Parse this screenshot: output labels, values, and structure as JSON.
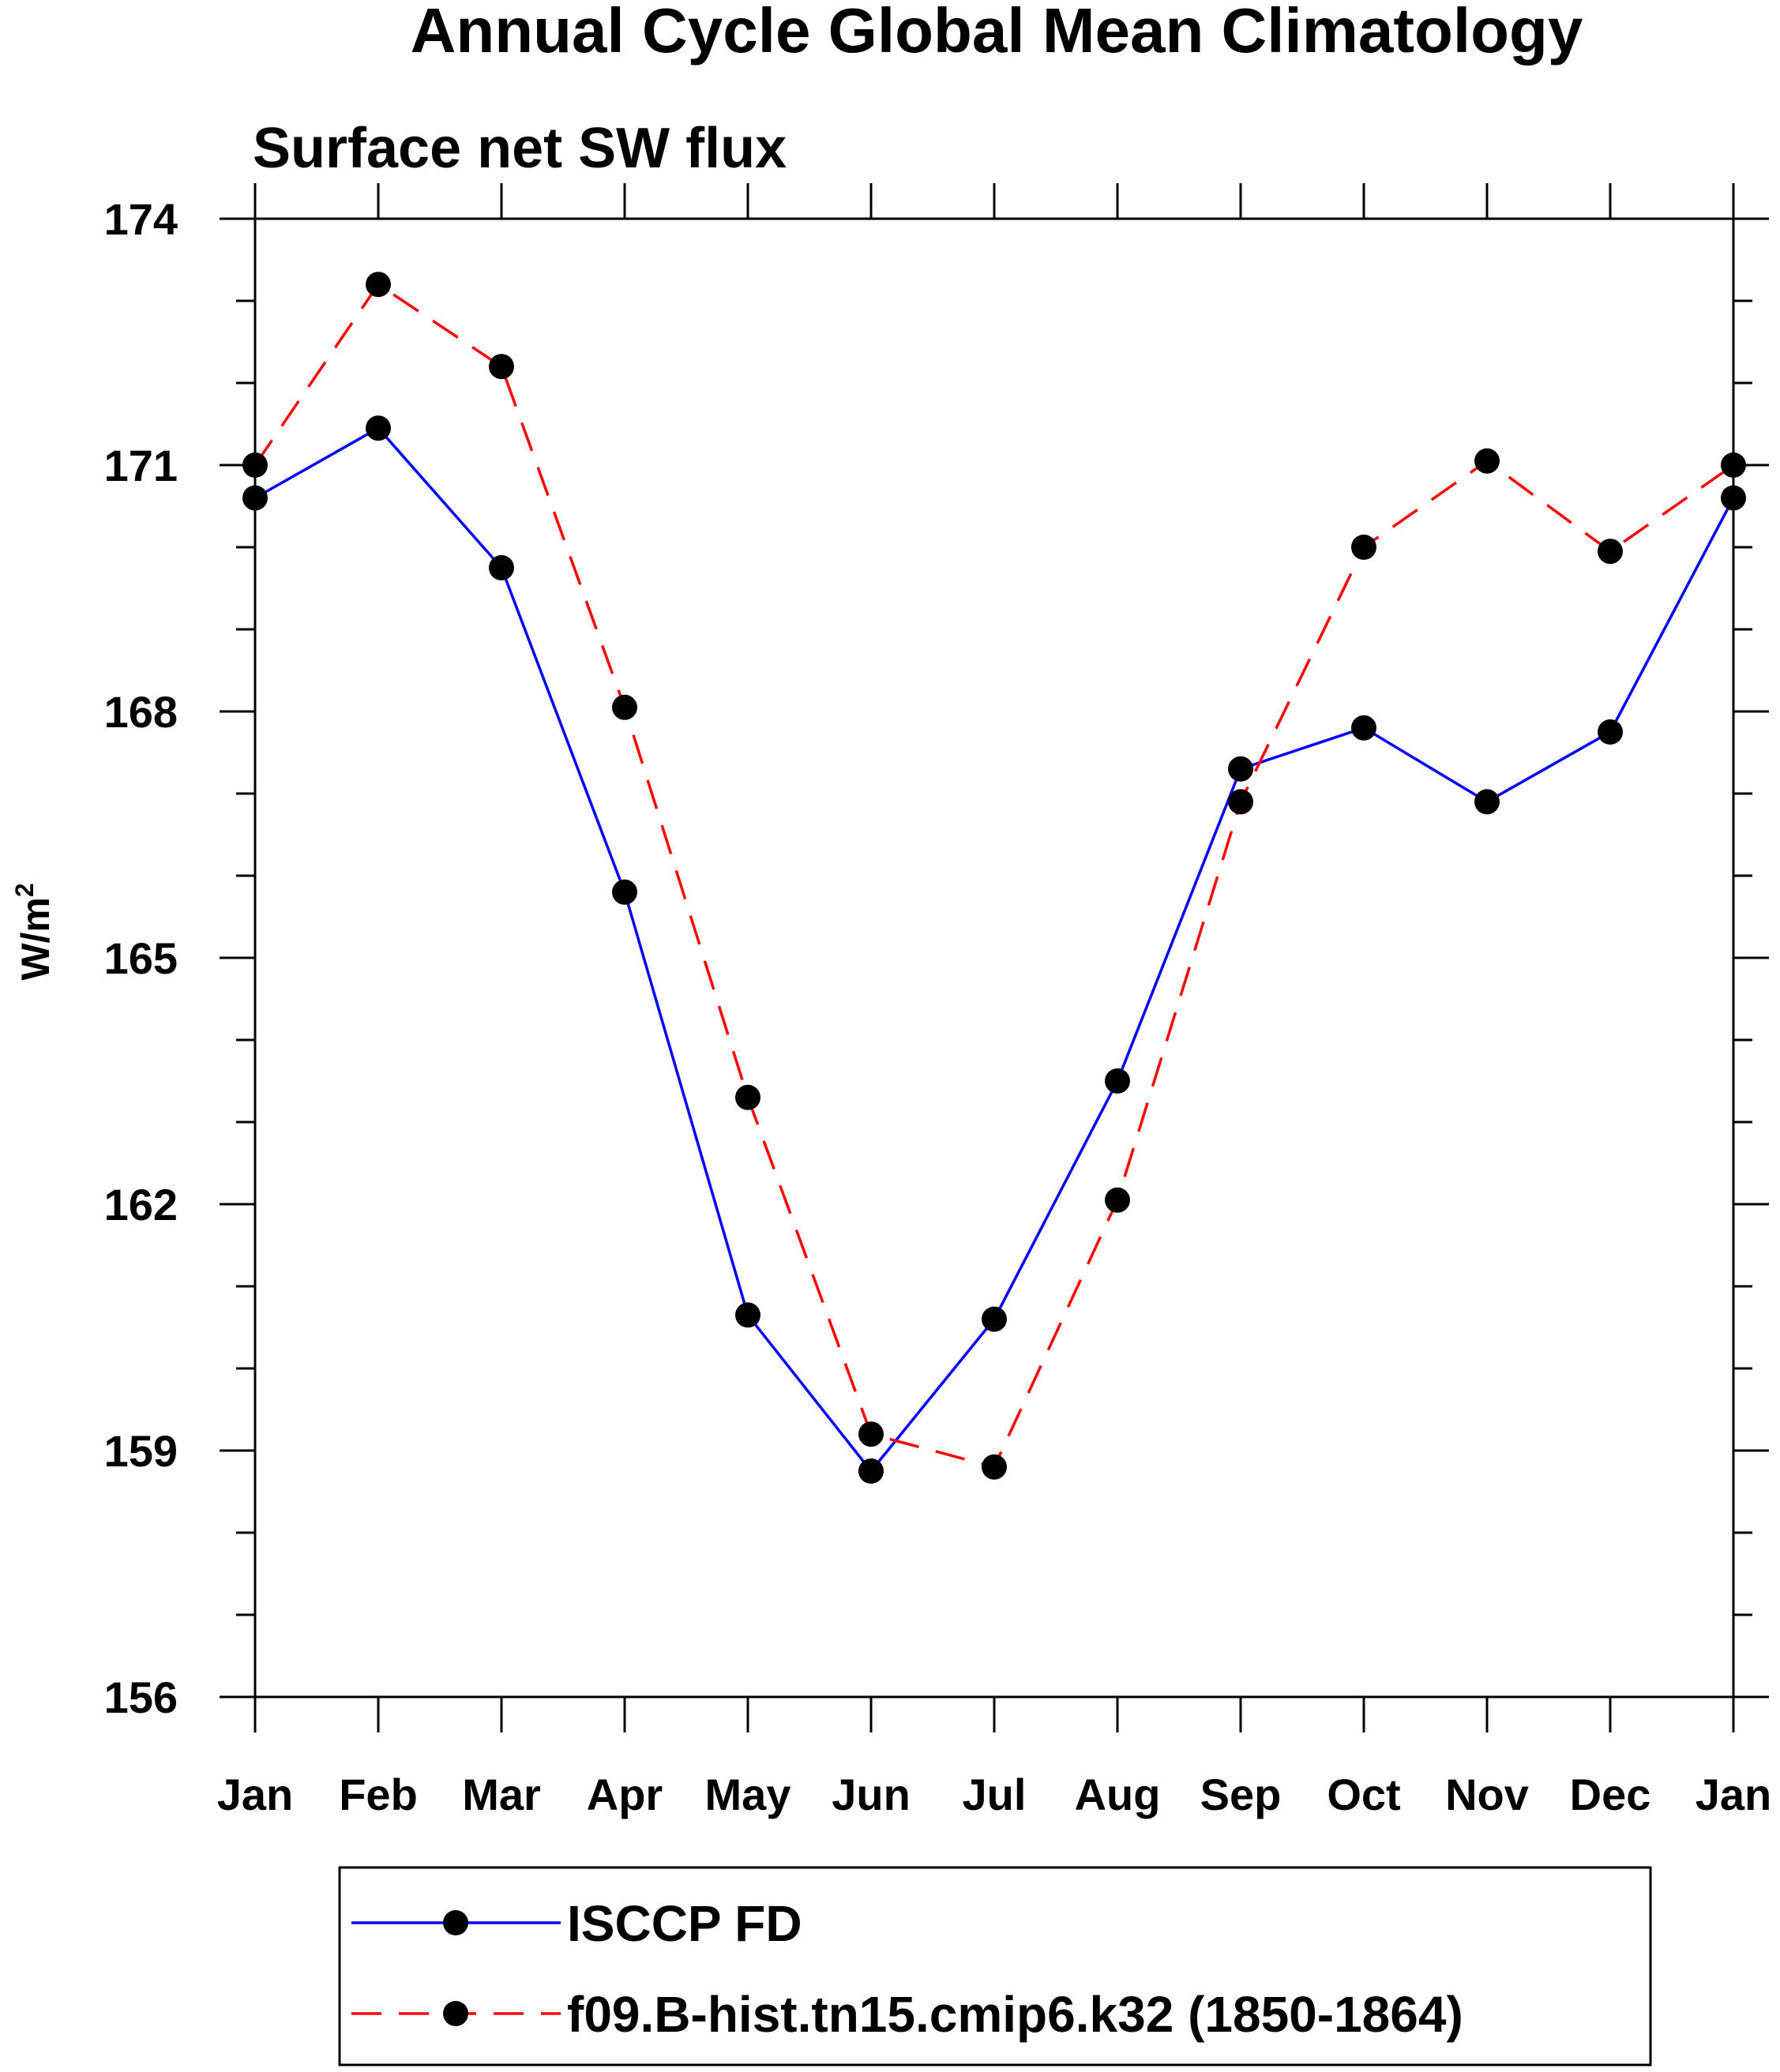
{
  "chart_data": {
    "type": "line",
    "title": "Annual Cycle Global Mean Climatology",
    "subtitle": "Surface net SW flux",
    "xlabel": "",
    "ylabel": "W/m",
    "ylabel_superscript": "2",
    "categories": [
      "Jan",
      "Feb",
      "Mar",
      "Apr",
      "May",
      "Jun",
      "Jul",
      "Aug",
      "Sep",
      "Oct",
      "Nov",
      "Dec",
      "Jan"
    ],
    "ylim": [
      156,
      174
    ],
    "yticks": [
      156,
      159,
      162,
      165,
      168,
      171,
      174
    ],
    "y_minor_step": 1,
    "grid": false,
    "legend_position": "bottom",
    "series": [
      {
        "name": "ISCCP FD",
        "color": "#0000ff",
        "style": "solid",
        "marker": "filled-circle",
        "values": [
          170.6,
          171.45,
          169.75,
          165.8,
          160.65,
          158.75,
          160.6,
          163.5,
          167.3,
          167.8,
          166.9,
          167.75,
          170.6
        ]
      },
      {
        "name": "f09.B-hist.tn15.cmip6.k32 (1850-1864)",
        "color": "#ff0000",
        "style": "dashed",
        "marker": "filled-circle",
        "values": [
          171.0,
          173.2,
          172.2,
          168.05,
          163.3,
          159.2,
          158.8,
          162.05,
          166.9,
          170.0,
          171.05,
          169.95,
          171.0
        ]
      }
    ]
  }
}
